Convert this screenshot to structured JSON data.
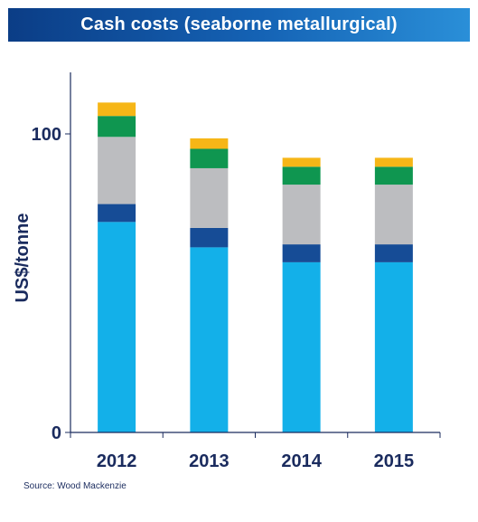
{
  "header": {
    "title": "Cash costs (seaborne metallurgical)"
  },
  "chart_data": {
    "type": "bar",
    "stacked": true,
    "title": "Cash costs (seaborne metallurgical)",
    "xlabel": "",
    "ylabel": "US$/tonne",
    "categories": [
      "2012",
      "2013",
      "2014",
      "2015"
    ],
    "series": [
      {
        "color": "#13b0e9",
        "values": [
          70.5,
          62,
          57,
          57
        ]
      },
      {
        "color": "#164c96",
        "values": [
          6,
          6.5,
          6,
          6
        ]
      },
      {
        "color": "#bcbdc0",
        "values": [
          22.5,
          20,
          20,
          20
        ]
      },
      {
        "color": "#0f9650",
        "values": [
          7,
          6.5,
          6,
          6
        ]
      },
      {
        "color": "#f6b617",
        "values": [
          4.5,
          3.5,
          3,
          3
        ]
      }
    ],
    "ylim": [
      0,
      120
    ],
    "yticks": [
      "0",
      "100"
    ],
    "ytick_values": [
      0,
      100
    ],
    "grid": false,
    "legend": "none"
  },
  "footer": {
    "source": "Source: Wood Mackenzie"
  },
  "colors": {
    "banner": "#0b3d86",
    "axis": "#1a2b5e"
  }
}
